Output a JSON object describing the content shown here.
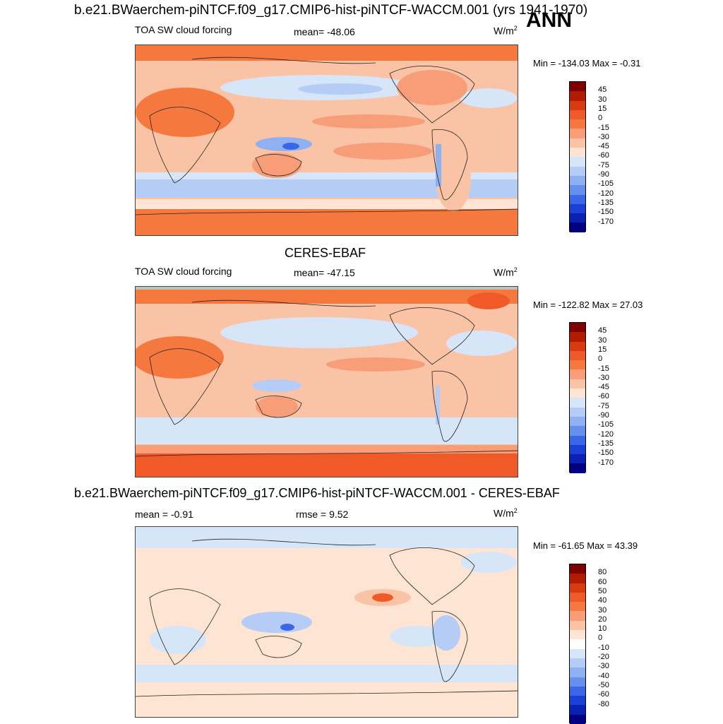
{
  "header": {
    "title": "b.e21.BWaerchem-piNTCF.f09_g17.CMIP6-hist-piNTCF-WACCM.001 (yrs 1941-1970)",
    "season": "ANN"
  },
  "panels": [
    {
      "title": "",
      "variable": "TOA SW cloud forcing",
      "mean": "mean= -48.06",
      "units_base": "W/m",
      "units_exp": "2",
      "minmax": "Min = -134.03 Max =  -0.31",
      "levels": [
        "45",
        "30",
        "15",
        "0",
        "-15",
        "-30",
        "-45",
        "-60",
        "-75",
        "-90",
        "-105",
        "-120",
        "-135",
        "-150",
        "-170"
      ]
    },
    {
      "title": "CERES-EBAF",
      "variable": "TOA SW cloud forcing",
      "mean": "mean= -47.15",
      "units_base": "W/m",
      "units_exp": "2",
      "minmax": "Min = -122.82 Max =  27.03",
      "levels": [
        "45",
        "30",
        "15",
        "0",
        "-15",
        "-30",
        "-45",
        "-60",
        "-75",
        "-90",
        "-105",
        "-120",
        "-135",
        "-150",
        "-170"
      ]
    },
    {
      "title": "b.e21.BWaerchem-piNTCF.f09_g17.CMIP6-hist-piNTCF-WACCM.001 - CERES-EBAF",
      "mean": "mean =  -0.91",
      "rmse": "rmse =   9.52",
      "units": "W/m",
      "units_exp": "2",
      "minmax": "Min = -61.65 Max =  43.39",
      "levels": [
        "80",
        "60",
        "50",
        "40",
        "30",
        "20",
        "10",
        "0",
        "-10",
        "-20",
        "-30",
        "-40",
        "-50",
        "-60",
        "-80"
      ]
    }
  ],
  "colorbar_colors": [
    "#7f0000",
    "#b31b00",
    "#d93a10",
    "#f05a28",
    "#f5793f",
    "#f79e78",
    "#fbc3a5",
    "#fde4d3",
    "#d6e6f8",
    "#b5cdf6",
    "#8fb1f2",
    "#6690ee",
    "#3a66e8",
    "#1a40d8",
    "#0a20b0",
    "#000080"
  ],
  "diff_colorbar_colors": [
    "#7f0000",
    "#b31b00",
    "#d93a10",
    "#f05a28",
    "#f5793f",
    "#f79e78",
    "#fbc3a5",
    "#fde4d3",
    "#ffffff",
    "#d6e6f8",
    "#b5cdf6",
    "#8fb1f2",
    "#6690ee",
    "#3a66e8",
    "#1a40d8",
    "#0a20b0",
    "#000080"
  ]
}
